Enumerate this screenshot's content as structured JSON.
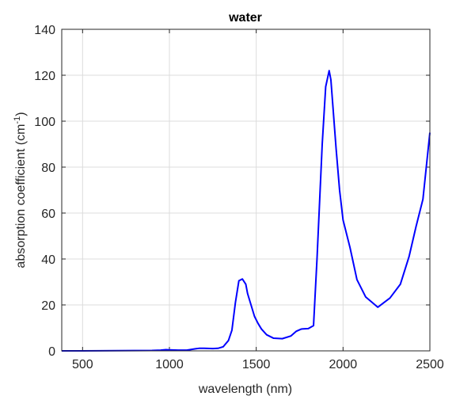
{
  "chart_data": {
    "type": "line",
    "title": "water",
    "xlabel": "wavelength (nm)",
    "ylabel": "absorption coefficient (cm",
    "ylabel_sup": "-1",
    "ylabel_tail": ")",
    "xlim": [
      380,
      2500
    ],
    "ylim": [
      0,
      140
    ],
    "xticks": [
      500,
      1000,
      1500,
      2000,
      2500
    ],
    "yticks": [
      0,
      20,
      40,
      60,
      80,
      100,
      120,
      140
    ],
    "grid": true,
    "line_color": "#0000ff",
    "series": [
      {
        "x": [
          380,
          500,
          700,
          900,
          950,
          980,
          1000,
          1050,
          1100,
          1150,
          1170,
          1200,
          1250,
          1280,
          1310,
          1340,
          1360,
          1380,
          1400,
          1420,
          1440,
          1450,
          1470,
          1490,
          1510,
          1530,
          1560,
          1600,
          1650,
          1700,
          1730,
          1760,
          1800,
          1830,
          1850,
          1880,
          1900,
          1920,
          1930,
          1940,
          1960,
          1980,
          2000,
          2040,
          2080,
          2130,
          2200,
          2270,
          2330,
          2380,
          2420,
          2460,
          2500
        ],
        "values": [
          0.0,
          0.0,
          0.1,
          0.15,
          0.3,
          0.5,
          0.45,
          0.3,
          0.3,
          0.9,
          1.1,
          1.1,
          1.0,
          1.1,
          1.8,
          4.5,
          9.0,
          21.0,
          30.5,
          31.3,
          29.0,
          25.0,
          20.0,
          15.0,
          12.0,
          9.5,
          7.0,
          5.5,
          5.3,
          6.5,
          8.5,
          9.5,
          9.7,
          11.0,
          40.0,
          90.0,
          115.0,
          122.0,
          118.0,
          108.0,
          88.0,
          70.0,
          57.0,
          45.0,
          31.0,
          23.5,
          19.0,
          23.0,
          29.0,
          41.0,
          54.0,
          66.0,
          95.0
        ]
      }
    ]
  }
}
